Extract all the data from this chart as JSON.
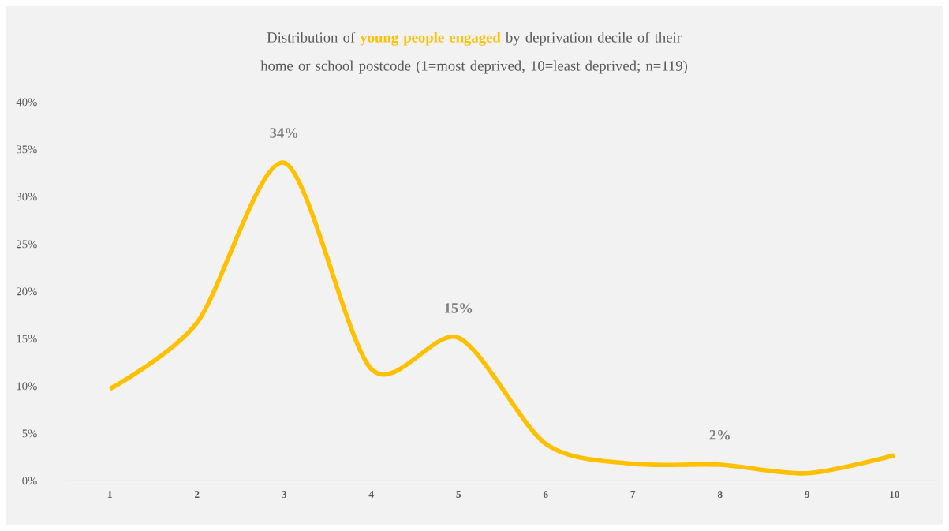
{
  "chart_data": {
    "type": "line",
    "title": "Distribution of **young people engaged** by deprivation decile of their home or school postcode (1=most deprived, 10=least deprived; n=119)",
    "categories": [
      "1",
      "2",
      "3",
      "4",
      "5",
      "6",
      "7",
      "8",
      "9",
      "10"
    ],
    "series": [
      {
        "color": "#ffc000",
        "values": [
          9.7,
          16.7,
          33.6,
          11.8,
          15.1,
          3.9,
          1.8,
          1.7,
          0.8,
          2.7
        ],
        "value_labels": [
          null,
          null,
          "34%",
          null,
          "15%",
          null,
          null,
          "2%",
          null,
          null
        ]
      }
    ],
    "ylim": [
      0,
      40
    ],
    "yticks": [
      {
        "value": 0,
        "label": "0%"
      },
      {
        "value": 5,
        "label": "5%"
      },
      {
        "value": 10,
        "label": "10%"
      },
      {
        "value": 15,
        "label": "15%"
      },
      {
        "value": 20,
        "label": "20%"
      },
      {
        "value": 25,
        "label": "25%"
      },
      {
        "value": 30,
        "label": "30%"
      },
      {
        "value": 35,
        "label": "35%"
      },
      {
        "value": 40,
        "label": "40%"
      }
    ],
    "grid": false
  }
}
